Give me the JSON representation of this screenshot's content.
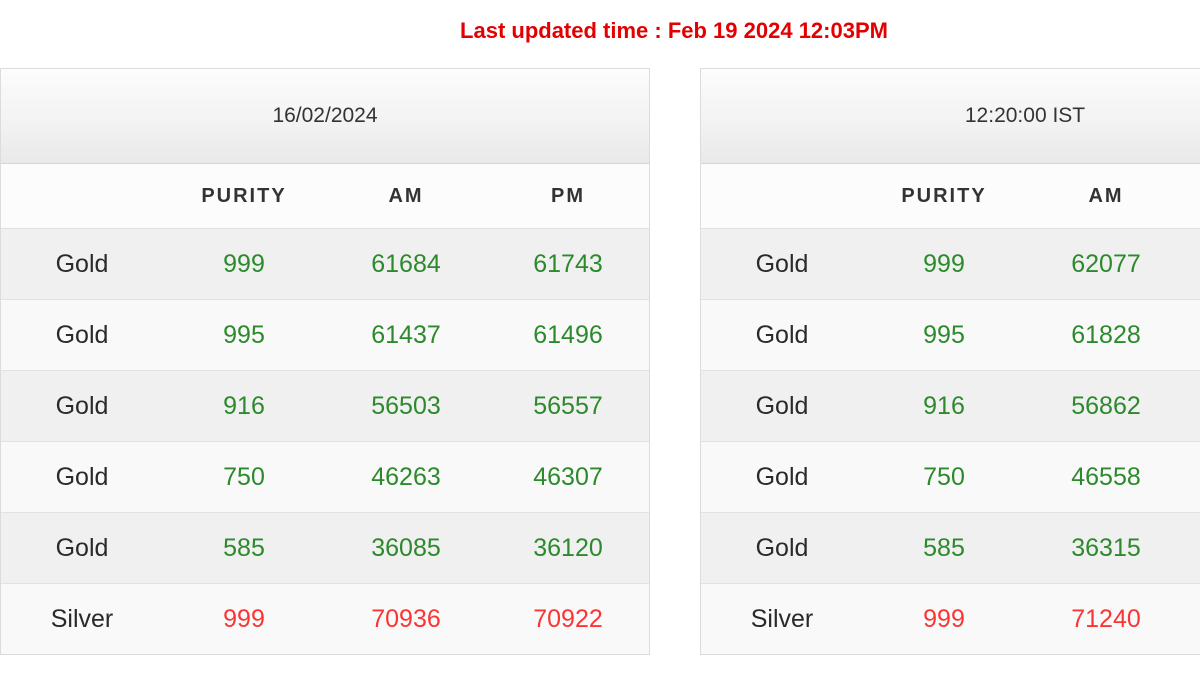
{
  "colors": {
    "heading_red": "#e20000",
    "gold_green": "#2c8a2c",
    "silver_red": "#fb3434",
    "label_dark": "#2a2a2a"
  },
  "banner": {
    "last_updated": "Last updated time : Feb 19 2024 12:03PM"
  },
  "left_table": {
    "caption": "16/02/2024",
    "columns": {
      "c0": "",
      "c1": "PURITY",
      "c2": "AM",
      "c3": "PM"
    },
    "rows": [
      {
        "metal": "Gold",
        "purity": "999",
        "am": "61684",
        "pm": "61743"
      },
      {
        "metal": "Gold",
        "purity": "995",
        "am": "61437",
        "pm": "61496"
      },
      {
        "metal": "Gold",
        "purity": "916",
        "am": "56503",
        "pm": "56557"
      },
      {
        "metal": "Gold",
        "purity": "750",
        "am": "46263",
        "pm": "46307"
      },
      {
        "metal": "Gold",
        "purity": "585",
        "am": "36085",
        "pm": "36120"
      },
      {
        "metal": "Silver",
        "purity": "999",
        "am": "70936",
        "pm": "70922"
      }
    ]
  },
  "right_table": {
    "caption": "12:20:00 IST",
    "columns": {
      "c0": "",
      "c1": "PURITY",
      "c2": "AM"
    },
    "rows": [
      {
        "metal": "Gold",
        "purity": "999",
        "am": "62077"
      },
      {
        "metal": "Gold",
        "purity": "995",
        "am": "61828"
      },
      {
        "metal": "Gold",
        "purity": "916",
        "am": "56862"
      },
      {
        "metal": "Gold",
        "purity": "750",
        "am": "46558"
      },
      {
        "metal": "Gold",
        "purity": "585",
        "am": "36315"
      },
      {
        "metal": "Silver",
        "purity": "999",
        "am": "71240"
      }
    ]
  }
}
